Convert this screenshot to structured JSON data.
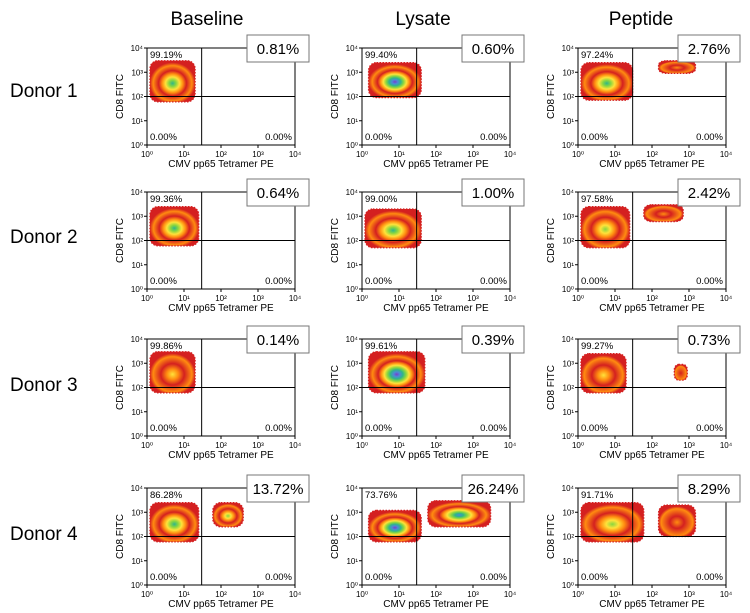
{
  "conditions": [
    "Baseline",
    "Lysate",
    "Peptide"
  ],
  "donors": [
    "Donor 1",
    "Donor 2",
    "Donor 3",
    "Donor 4"
  ],
  "axes": {
    "xlabel": "CMV pp65 Tetramer PE",
    "ylabel": "CD8 FITC",
    "scale": "log",
    "range": [
      1,
      10000
    ],
    "ticks": [
      "10",
      "10",
      "10",
      "10",
      "10"
    ],
    "tick_exponents": [
      "0",
      "1",
      "2",
      "3",
      "4"
    ]
  },
  "chart_data": {
    "type": "scatter",
    "title": "",
    "xlabel": "CMV pp65 Tetramer PE",
    "ylabel": "CD8 FITC",
    "xscale": "log",
    "yscale": "log",
    "xlim": [
      1,
      10000
    ],
    "ylim": [
      1,
      10000
    ],
    "rows": [
      "Donor 1",
      "Donor 2",
      "Donor 3",
      "Donor 4"
    ],
    "columns": [
      "Baseline",
      "Lysate",
      "Peptide"
    ],
    "panels": [
      [
        {
          "upper_left": "99.19%",
          "upper_right": "0.81%",
          "lower_left": "0.00%",
          "lower_right": "0.00%"
        },
        {
          "upper_left": "99.40%",
          "upper_right": "0.60%",
          "lower_left": "0.00%",
          "lower_right": "0.00%"
        },
        {
          "upper_left": "97.24%",
          "upper_right": "2.76%",
          "lower_left": "0.00%",
          "lower_right": "0.00%"
        }
      ],
      [
        {
          "upper_left": "99.36%",
          "upper_right": "0.64%",
          "lower_left": "0.00%",
          "lower_right": "0.00%"
        },
        {
          "upper_left": "99.00%",
          "upper_right": "1.00%",
          "lower_left": "0.00%",
          "lower_right": "0.00%"
        },
        {
          "upper_left": "97.58%",
          "upper_right": "2.42%",
          "lower_left": "0.00%",
          "lower_right": "0.00%"
        }
      ],
      [
        {
          "upper_left": "99.86%",
          "upper_right": "0.14%",
          "lower_left": "0.00%",
          "lower_right": "0.00%"
        },
        {
          "upper_left": "99.61%",
          "upper_right": "0.39%",
          "lower_left": "0.00%",
          "lower_right": "0.00%"
        },
        {
          "upper_left": "99.27%",
          "upper_right": "0.73%",
          "lower_left": "0.00%",
          "lower_right": "0.00%"
        }
      ],
      [
        {
          "upper_left": "86.28%",
          "upper_right": "13.72%",
          "lower_left": "0.00%",
          "lower_right": "0.00%"
        },
        {
          "upper_left": "73.76%",
          "upper_right": "26.24%",
          "lower_left": "0.00%",
          "lower_right": "0.00%"
        },
        {
          "upper_left": "91.71%",
          "upper_right": "8.29%",
          "lower_left": "0.00%",
          "lower_right": "0.00%"
        }
      ]
    ],
    "gates": {
      "x": 30,
      "y": 100
    },
    "density_colors": [
      "#d42020",
      "#ff8c10",
      "#ffe23a",
      "#88d640",
      "#2fb58a",
      "#4c8ad6",
      "#7a3fc8"
    ],
    "populations": [
      [
        [
          {
            "x": [
              1.2,
              20
            ],
            "y": [
              60,
              3000
            ],
            "level": 4
          }
        ],
        [
          {
            "x": [
              1.5,
              40
            ],
            "y": [
              90,
              2500
            ],
            "level": 6
          }
        ],
        [
          {
            "x": [
              1.2,
              30
            ],
            "y": [
              70,
              2500
            ],
            "level": 4
          },
          {
            "x": [
              150,
              1500
            ],
            "y": [
              900,
              3000
            ],
            "level": 1
          }
        ]
      ],
      [
        [
          {
            "x": [
              1.2,
              25
            ],
            "y": [
              60,
              2500
            ],
            "level": 4
          }
        ],
        [
          {
            "x": [
              1.2,
              40
            ],
            "y": [
              50,
              2000
            ],
            "level": 4
          }
        ],
        [
          {
            "x": [
              1.2,
              25
            ],
            "y": [
              50,
              2500
            ],
            "level": 3
          },
          {
            "x": [
              60,
              700
            ],
            "y": [
              600,
              3000
            ],
            "level": 1
          }
        ]
      ],
      [
        [
          {
            "x": [
              1.2,
              20
            ],
            "y": [
              60,
              3000
            ],
            "level": 2
          }
        ],
        [
          {
            "x": [
              1.5,
              50
            ],
            "y": [
              60,
              3000
            ],
            "level": 6
          }
        ],
        [
          {
            "x": [
              1.2,
              20
            ],
            "y": [
              60,
              2500
            ],
            "level": 2
          },
          {
            "x": [
              400,
              900
            ],
            "y": [
              200,
              900
            ],
            "level": 0
          }
        ]
      ],
      [
        [
          {
            "x": [
              1.2,
              25
            ],
            "y": [
              60,
              2500
            ],
            "level": 4
          },
          {
            "x": [
              60,
              400
            ],
            "y": [
              250,
              2500
            ],
            "level": 3
          }
        ],
        [
          {
            "x": [
              1.5,
              40
            ],
            "y": [
              60,
              1200
            ],
            "level": 6
          },
          {
            "x": [
              60,
              3000
            ],
            "y": [
              250,
              3000
            ],
            "level": 5
          }
        ],
        [
          {
            "x": [
              1.2,
              60
            ],
            "y": [
              60,
              2500
            ],
            "level": 3
          },
          {
            "x": [
              150,
              1500
            ],
            "y": [
              100,
              2000
            ],
            "level": 1
          }
        ]
      ]
    ]
  }
}
